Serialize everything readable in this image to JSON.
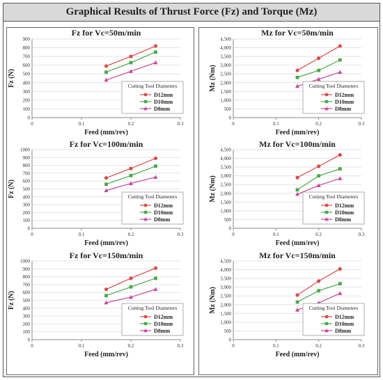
{
  "page_title": "Graphical Results of Thrust Force (Fz) and Torque (Mz)",
  "colors": {
    "D12mm": "#d94a4a",
    "D10mm": "#4aa84a",
    "D8mm": "#c8469c"
  },
  "chart_data": [
    {
      "type": "line",
      "title": "Fz for Vc=50m/min",
      "xlabel": "Feed (mm/rev)",
      "ylabel": "Fz (N)",
      "xlim": [
        0,
        0.3
      ],
      "ylim": [
        0,
        900
      ],
      "xticks": [
        "0",
        "0.1",
        "0.2",
        "0.3"
      ],
      "yticks": [
        "0",
        "100",
        "200",
        "300",
        "400",
        "500",
        "600",
        "700",
        "800",
        "900"
      ],
      "legend_title": "Cutting Tool Diameters",
      "legend_position": "lower-right",
      "x": [
        0.15,
        0.2,
        0.25
      ],
      "series": [
        {
          "name": "D12mm",
          "marker": "circle",
          "values": [
            590,
            700,
            820
          ]
        },
        {
          "name": "D10mm",
          "marker": "square",
          "values": [
            520,
            630,
            750
          ]
        },
        {
          "name": "D8mm",
          "marker": "triangle",
          "values": [
            430,
            530,
            630
          ]
        }
      ]
    },
    {
      "type": "line",
      "title": "Mz for Vc=50m/min",
      "xlabel": "Feed (mm/rev)",
      "ylabel": "Mz (Nm)",
      "xlim": [
        0,
        0.3
      ],
      "ylim": [
        0,
        4500
      ],
      "xticks": [
        "0",
        "0.1",
        "0.2",
        "0.3"
      ],
      "yticks": [
        "0",
        "500",
        "1,000",
        "1,500",
        "2,000",
        "2,500",
        "3,000",
        "3,500",
        "4,000",
        "4,500"
      ],
      "legend_title": "Cutting Tool Diameters",
      "legend_position": "lower-right",
      "x": [
        0.15,
        0.2,
        0.25
      ],
      "series": [
        {
          "name": "D12mm",
          "marker": "circle",
          "values": [
            2700,
            3400,
            4100
          ]
        },
        {
          "name": "D10mm",
          "marker": "square",
          "values": [
            2300,
            2700,
            3300
          ]
        },
        {
          "name": "D8mm",
          "marker": "triangle",
          "values": [
            1800,
            2200,
            2600
          ]
        }
      ]
    },
    {
      "type": "line",
      "title": "Fz for Vc=100m/min",
      "xlabel": "Feed (mm/rev)",
      "ylabel": "Fz (N)",
      "xlim": [
        0,
        0.3
      ],
      "ylim": [
        0,
        1000
      ],
      "xticks": [
        "0",
        "0.1",
        "0.2",
        "0.3"
      ],
      "yticks": [
        "0",
        "100",
        "200",
        "300",
        "400",
        "500",
        "600",
        "700",
        "800",
        "900",
        "1000"
      ],
      "legend_title": "Cutting Tool Diameters",
      "legend_position": "lower-right",
      "x": [
        0.15,
        0.2,
        0.25
      ],
      "series": [
        {
          "name": "D12mm",
          "marker": "circle",
          "values": [
            640,
            760,
            890
          ]
        },
        {
          "name": "D10mm",
          "marker": "square",
          "values": [
            560,
            670,
            790
          ]
        },
        {
          "name": "D8mm",
          "marker": "triangle",
          "values": [
            480,
            570,
            650
          ]
        }
      ]
    },
    {
      "type": "line",
      "title": "Mz for Vc=100m/min",
      "xlabel": "Feed (mm/rev)",
      "ylabel": "Mz (Nm)",
      "xlim": [
        0,
        0.3
      ],
      "ylim": [
        0,
        4500
      ],
      "xticks": [
        "0",
        "0.1",
        "0.2",
        "0.3"
      ],
      "yticks": [
        "0",
        "500",
        "1,000",
        "1,500",
        "2,000",
        "2,500",
        "3,000",
        "3,500",
        "4,000",
        "4,500"
      ],
      "legend_title": "Cutting Tool Diameters",
      "legend_position": "lower-right",
      "x": [
        0.15,
        0.2,
        0.25
      ],
      "series": [
        {
          "name": "D12mm",
          "marker": "circle",
          "values": [
            2900,
            3550,
            4200
          ]
        },
        {
          "name": "D10mm",
          "marker": "square",
          "values": [
            2200,
            3000,
            3400
          ]
        },
        {
          "name": "D8mm",
          "marker": "triangle",
          "values": [
            1950,
            2450,
            2850
          ]
        }
      ]
    },
    {
      "type": "line",
      "title": "Fz for Vc=150m/min",
      "xlabel": "Feed (mm/rev)",
      "ylabel": "Fz (N)",
      "xlim": [
        0,
        0.3
      ],
      "ylim": [
        0,
        1000
      ],
      "xticks": [
        "0",
        "0.1",
        "0.2",
        "0.3"
      ],
      "yticks": [
        "0",
        "100",
        "200",
        "300",
        "400",
        "500",
        "600",
        "700",
        "800",
        "900",
        "1000"
      ],
      "legend_title": "Cutting Tool Diameters",
      "legend_position": "lower-right",
      "x": [
        0.15,
        0.2,
        0.25
      ],
      "series": [
        {
          "name": "D12mm",
          "marker": "circle",
          "values": [
            640,
            780,
            910
          ]
        },
        {
          "name": "D10mm",
          "marker": "square",
          "values": [
            560,
            670,
            780
          ]
        },
        {
          "name": "D8mm",
          "marker": "triangle",
          "values": [
            470,
            540,
            640
          ]
        }
      ]
    },
    {
      "type": "line",
      "title": "Mz for Vc=150m/min",
      "xlabel": "Feed (mm/rev)",
      "ylabel": "Mz (Nm)",
      "xlim": [
        0,
        0.3
      ],
      "ylim": [
        0,
        4500
      ],
      "xticks": [
        "0",
        "0.1",
        "0.2",
        "0.3"
      ],
      "yticks": [
        "0",
        "500",
        "1,000",
        "1,500",
        "2,000",
        "2,500",
        "3,000",
        "3,500",
        "4,000",
        "4,500"
      ],
      "legend_title": "Cutting Tool Diameters",
      "legend_position": "lower-right",
      "x": [
        0.15,
        0.2,
        0.25
      ],
      "series": [
        {
          "name": "D12mm",
          "marker": "circle",
          "values": [
            2550,
            3350,
            4050
          ]
        },
        {
          "name": "D10mm",
          "marker": "square",
          "values": [
            2150,
            2800,
            3200
          ]
        },
        {
          "name": "D8mm",
          "marker": "triangle",
          "values": [
            1700,
            2100,
            2650
          ]
        }
      ]
    }
  ]
}
